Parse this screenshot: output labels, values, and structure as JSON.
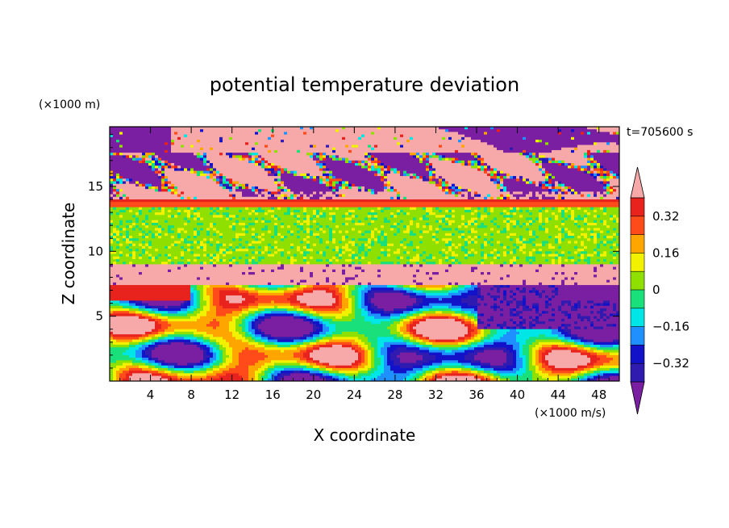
{
  "chart_data": {
    "type": "heatmap",
    "title": "potential temperature deviation",
    "xlabel": "X coordinate",
    "ylabel": "Z coordinate",
    "x_units": "(×1000 m/s)",
    "y_units": "(×1000 m)",
    "time_label": "t=705600 s",
    "xlim": [
      0,
      50
    ],
    "ylim": [
      0,
      19.6
    ],
    "x_ticks": [
      4,
      8,
      12,
      16,
      20,
      24,
      28,
      32,
      36,
      40,
      44,
      48
    ],
    "y_ticks": [
      5,
      10,
      15
    ],
    "colorbar": {
      "levels": [
        -0.4,
        -0.32,
        -0.24,
        -0.16,
        -0.08,
        0,
        0.08,
        0.16,
        0.24,
        0.32,
        0.4
      ],
      "tick_labels": [
        "0.32",
        "0.16",
        "0",
        "−0.16",
        "−0.32"
      ],
      "tick_values": [
        0.32,
        0.16,
        0,
        -0.16,
        -0.32
      ],
      "colors": [
        "#7a1fa2",
        "#2f1bb0",
        "#1212c8",
        "#1e90ff",
        "#00e5e5",
        "#19e07a",
        "#8fe000",
        "#f2f200",
        "#ffa500",
        "#ff4a1a",
        "#e8221c",
        "#f7a8a8"
      ],
      "extend": "both"
    },
    "layers": [
      {
        "z_range": [
          17.5,
          19.6
        ],
        "description_level": "mixed pink and purple"
      },
      {
        "z_range": [
          14.0,
          17.5
        ],
        "level": "mixed"
      },
      {
        "z_range": [
          13.5,
          14.0
        ],
        "level": 0.32
      },
      {
        "z_range": [
          9.0,
          13.5
        ],
        "level": 0.04
      },
      {
        "z_range": [
          7.5,
          9.0
        ],
        "level": 0.4
      },
      {
        "z_range": [
          0,
          7.5
        ],
        "level": "turbulent mixed"
      }
    ]
  }
}
